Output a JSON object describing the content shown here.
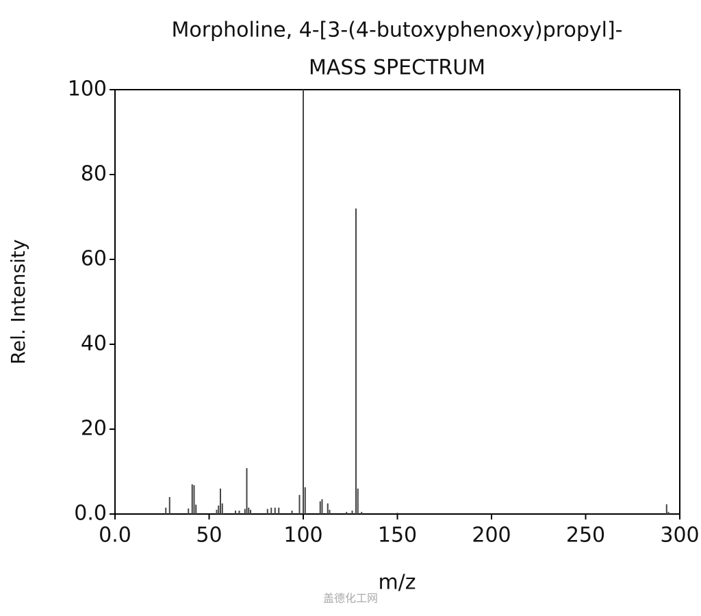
{
  "chart_data": {
    "type": "bar",
    "title": "Morpholine, 4-[3-(4-butoxyphenoxy)propyl]-",
    "subtitle": "MASS SPECTRUM",
    "x_label": "m/z",
    "y_label": "Rel. Intensity",
    "source": "盖德化工网",
    "x": [
      27,
      29,
      39,
      41,
      42,
      43,
      54,
      55,
      56,
      57,
      64,
      66,
      69,
      70,
      71,
      72,
      81,
      83,
      85,
      87,
      94,
      98,
      100,
      101,
      109,
      110,
      113,
      114,
      123,
      126,
      128,
      129,
      131,
      150,
      293,
      294
    ],
    "values": [
      1.5,
      4,
      1.3,
      7,
      6.8,
      2.2,
      1,
      2,
      6,
      2.5,
      0.8,
      0.8,
      1.2,
      10.8,
      1.5,
      1,
      1.2,
      1.5,
      1.5,
      1.5,
      0.8,
      4.5,
      100,
      6.3,
      3,
      3.5,
      2.5,
      1,
      0.5,
      0.8,
      72,
      6,
      0.5,
      0.3,
      2.3,
      0.5
    ],
    "color": "#444444",
    "xlim": [
      0,
      300
    ],
    "xticks": [
      {
        "value": 0,
        "label": "0.0"
      },
      50,
      100,
      150,
      200,
      250,
      300
    ],
    "ylim": [
      0,
      100
    ],
    "yticks": [
      {
        "value": 0,
        "label": "0.0"
      },
      20,
      40,
      60,
      80,
      100
    ],
    "grid": false
  }
}
